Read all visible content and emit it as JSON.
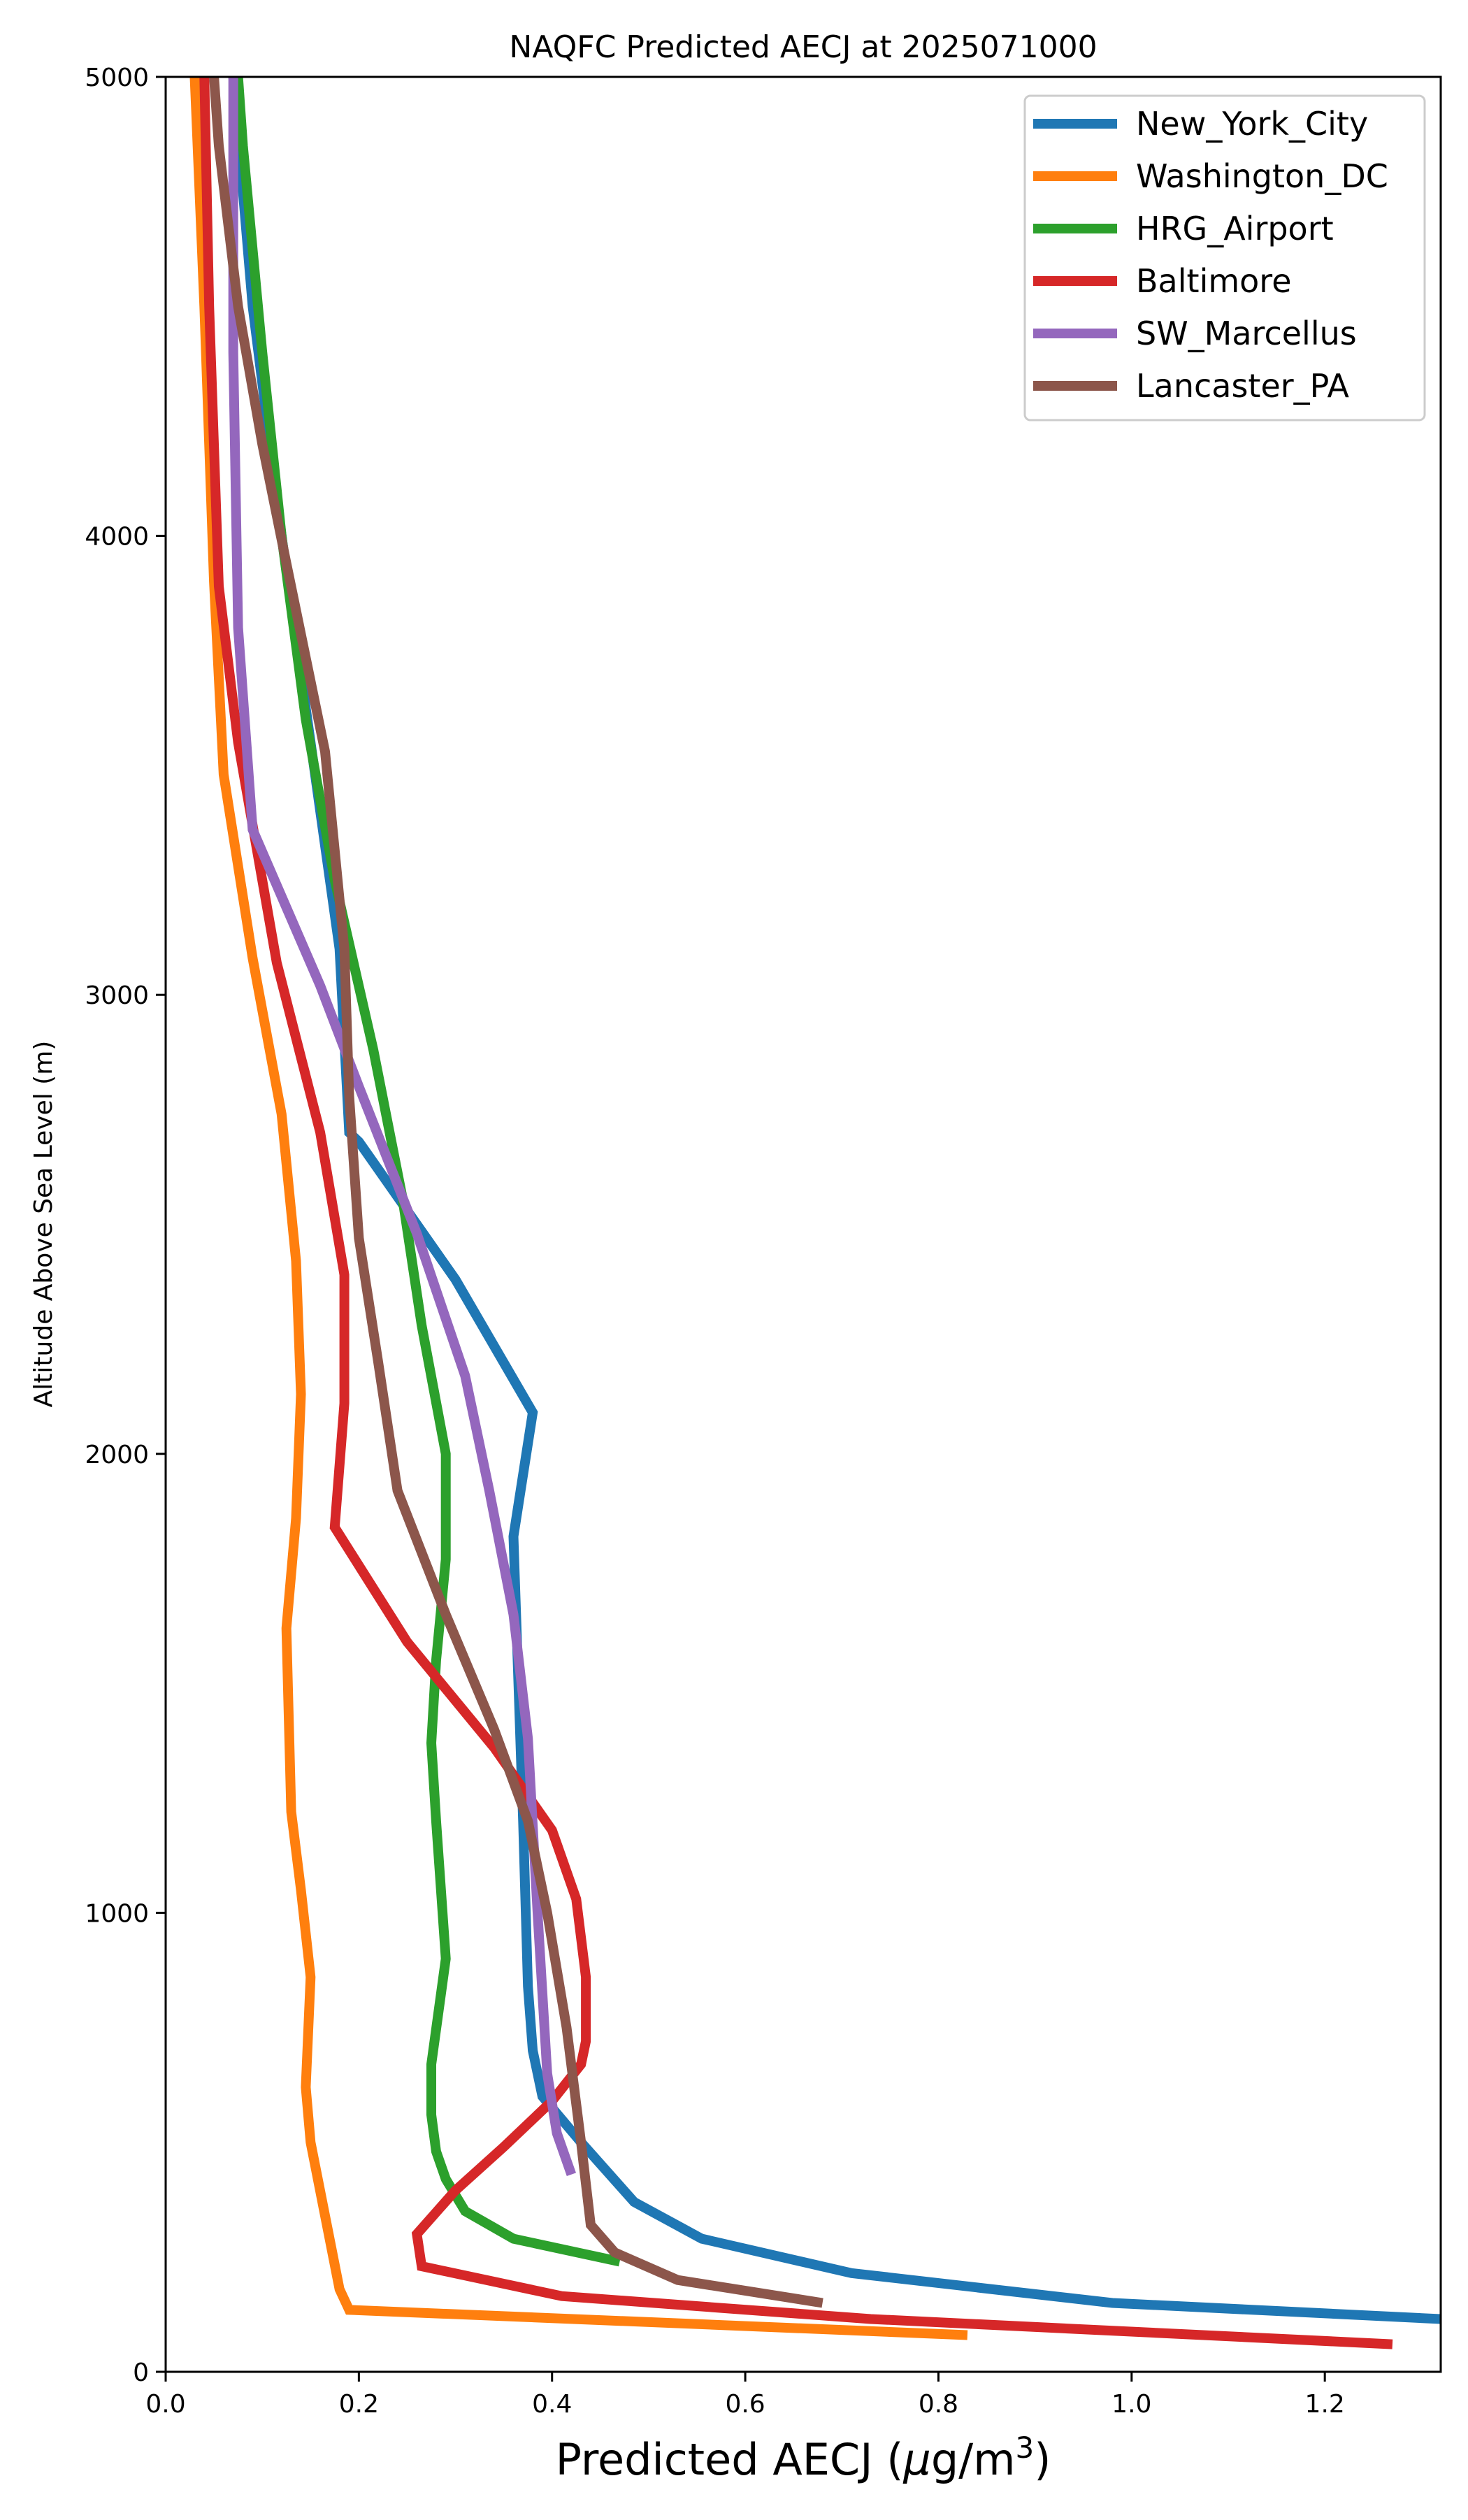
{
  "chart_data": {
    "type": "line",
    "title": "NAQFC Predicted AECJ at 2025071000",
    "xlabel_main": "Predicted AECJ (",
    "xlabel_mu": "μ",
    "xlabel_unit": "g/m",
    "xlabel_exp": "3",
    "xlabel_close": ")",
    "ylabel": "Altitude Above Sea Level (m)",
    "xlim": [
      0,
      1.32
    ],
    "ylim": [
      0,
      5000
    ],
    "xticks": [
      0.0,
      0.2,
      0.4,
      0.6,
      0.8,
      1.0,
      1.2
    ],
    "xtick_labels": [
      "0.0",
      "0.2",
      "0.4",
      "0.6",
      "0.8",
      "1.0",
      "1.2"
    ],
    "yticks": [
      0,
      1000,
      2000,
      3000,
      4000,
      5000
    ],
    "ytick_labels": [
      "0",
      "1000",
      "2000",
      "3000",
      "4000",
      "5000"
    ],
    "grid": false,
    "legend_position": "top-right",
    "series": [
      {
        "name": "New_York_City",
        "color": "#1f77b4",
        "points": [
          [
            1.32,
            115
          ],
          [
            0.98,
            150
          ],
          [
            0.71,
            215
          ],
          [
            0.555,
            290
          ],
          [
            0.485,
            370
          ],
          [
            0.43,
            500
          ],
          [
            0.39,
            600
          ],
          [
            0.38,
            700
          ],
          [
            0.375,
            840
          ],
          [
            0.37,
            1200
          ],
          [
            0.36,
            1820
          ],
          [
            0.38,
            2090
          ],
          [
            0.3,
            2380
          ],
          [
            0.2,
            2680
          ],
          [
            0.19,
            2700
          ],
          [
            0.18,
            3100
          ],
          [
            0.14,
            3700
          ],
          [
            0.12,
            4000
          ],
          [
            0.09,
            4500
          ],
          [
            0.07,
            5000
          ]
        ]
      },
      {
        "name": "Washington_DC",
        "color": "#ff7f0e",
        "points": [
          [
            0.83,
            80
          ],
          [
            0.19,
            135
          ],
          [
            0.18,
            180
          ],
          [
            0.15,
            500
          ],
          [
            0.145,
            620
          ],
          [
            0.15,
            860
          ],
          [
            0.14,
            1050
          ],
          [
            0.13,
            1220
          ],
          [
            0.125,
            1620
          ],
          [
            0.135,
            1860
          ],
          [
            0.14,
            2130
          ],
          [
            0.135,
            2420
          ],
          [
            0.12,
            2740
          ],
          [
            0.09,
            3080
          ],
          [
            0.06,
            3480
          ],
          [
            0.05,
            3900
          ],
          [
            0.04,
            4500
          ],
          [
            0.03,
            5000
          ]
        ]
      },
      {
        "name": "HRG_Airport",
        "color": "#2ca02c",
        "points": [
          [
            0.47,
            240
          ],
          [
            0.36,
            290
          ],
          [
            0.31,
            350
          ],
          [
            0.29,
            420
          ],
          [
            0.28,
            480
          ],
          [
            0.275,
            560
          ],
          [
            0.275,
            670
          ],
          [
            0.29,
            900
          ],
          [
            0.28,
            1200
          ],
          [
            0.275,
            1370
          ],
          [
            0.28,
            1550
          ],
          [
            0.29,
            1770
          ],
          [
            0.29,
            2000
          ],
          [
            0.265,
            2280
          ],
          [
            0.245,
            2560
          ],
          [
            0.215,
            2880
          ],
          [
            0.175,
            3250
          ],
          [
            0.145,
            3600
          ],
          [
            0.12,
            4000
          ],
          [
            0.1,
            4400
          ],
          [
            0.08,
            4850
          ],
          [
            0.075,
            5000
          ]
        ]
      },
      {
        "name": "Baltimore",
        "color": "#d62728",
        "points": [
          [
            1.27,
            60
          ],
          [
            0.73,
            115
          ],
          [
            0.41,
            165
          ],
          [
            0.265,
            230
          ],
          [
            0.26,
            300
          ],
          [
            0.3,
            395
          ],
          [
            0.35,
            490
          ],
          [
            0.4,
            590
          ],
          [
            0.43,
            670
          ],
          [
            0.435,
            720
          ],
          [
            0.435,
            860
          ],
          [
            0.425,
            1030
          ],
          [
            0.4,
            1180
          ],
          [
            0.34,
            1360
          ],
          [
            0.25,
            1590
          ],
          [
            0.175,
            1840
          ],
          [
            0.185,
            2110
          ],
          [
            0.185,
            2390
          ],
          [
            0.16,
            2700
          ],
          [
            0.115,
            3070
          ],
          [
            0.075,
            3550
          ],
          [
            0.055,
            3890
          ],
          [
            0.045,
            4500
          ],
          [
            0.04,
            5000
          ]
        ]
      },
      {
        "name": "SW_Marcellus",
        "color": "#9467bd",
        "points": [
          [
            0.42,
            430
          ],
          [
            0.405,
            520
          ],
          [
            0.395,
            650
          ],
          [
            0.385,
            1000
          ],
          [
            0.375,
            1380
          ],
          [
            0.36,
            1650
          ],
          [
            0.335,
            1920
          ],
          [
            0.31,
            2170
          ],
          [
            0.26,
            2480
          ],
          [
            0.2,
            2800
          ],
          [
            0.16,
            3020
          ],
          [
            0.09,
            3360
          ],
          [
            0.075,
            3800
          ],
          [
            0.07,
            4400
          ],
          [
            0.07,
            4780
          ],
          [
            0.07,
            5000
          ]
        ]
      },
      {
        "name": "Lancaster_PA",
        "color": "#8c564b",
        "points": [
          [
            0.68,
            150
          ],
          [
            0.53,
            200
          ],
          [
            0.465,
            260
          ],
          [
            0.44,
            320
          ],
          [
            0.43,
            500
          ],
          [
            0.415,
            750
          ],
          [
            0.395,
            1000
          ],
          [
            0.375,
            1200
          ],
          [
            0.34,
            1400
          ],
          [
            0.29,
            1650
          ],
          [
            0.24,
            1920
          ],
          [
            0.22,
            2200
          ],
          [
            0.2,
            2470
          ],
          [
            0.19,
            2780
          ],
          [
            0.185,
            3100
          ],
          [
            0.165,
            3530
          ],
          [
            0.125,
            3940
          ],
          [
            0.1,
            4200
          ],
          [
            0.075,
            4500
          ],
          [
            0.055,
            4850
          ],
          [
            0.05,
            5000
          ]
        ]
      }
    ]
  }
}
